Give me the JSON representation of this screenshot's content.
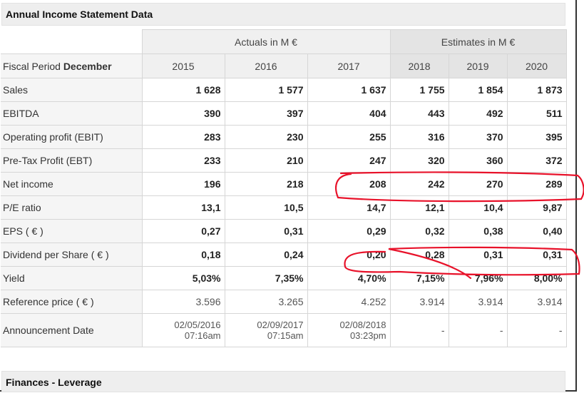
{
  "section1": {
    "title": "Annual Income Statement Data"
  },
  "section2": {
    "title": "Finances - Leverage"
  },
  "header": {
    "actuals_label": "Actuals in M €",
    "estimates_label": "Estimates in M €",
    "fiscal_period_prefix": "Fiscal Period ",
    "fiscal_period_month": "December",
    "years": [
      "2015",
      "2016",
      "2017",
      "2018",
      "2019",
      "2020"
    ]
  },
  "rows": [
    {
      "label": "Sales",
      "values": [
        "1 628",
        "1 577",
        "1 637",
        "1 755",
        "1 854",
        "1 873"
      ]
    },
    {
      "label": "EBITDA",
      "values": [
        "390",
        "397",
        "404",
        "443",
        "492",
        "511"
      ]
    },
    {
      "label": "Operating profit (EBIT)",
      "values": [
        "283",
        "230",
        "255",
        "316",
        "370",
        "395"
      ]
    },
    {
      "label": "Pre-Tax Profit (EBT)",
      "values": [
        "233",
        "210",
        "247",
        "320",
        "360",
        "372"
      ]
    },
    {
      "label": "Net income",
      "values": [
        "196",
        "218",
        "208",
        "242",
        "270",
        "289"
      ]
    },
    {
      "label": "P/E ratio",
      "values": [
        "13,1",
        "10,5",
        "14,7",
        "12,1",
        "10,4",
        "9,87"
      ]
    },
    {
      "label": "EPS ( € )",
      "values": [
        "0,27",
        "0,31",
        "0,29",
        "0,32",
        "0,38",
        "0,40"
      ]
    },
    {
      "label": "Dividend per Share ( € )",
      "values": [
        "0,18",
        "0,24",
        "0,20",
        "0,28",
        "0,31",
        "0,31"
      ]
    },
    {
      "label": "Yield",
      "values": [
        "5,03%",
        "7,35%",
        "4,70%",
        "7,15%",
        "7,96%",
        "8,00%"
      ]
    },
    {
      "label": "Reference price ( € )",
      "values": [
        "3.596",
        "3.265",
        "4.252",
        "3.914",
        "3.914",
        "3.914"
      ]
    }
  ],
  "announcement": {
    "label": "Announcement Date",
    "values": [
      {
        "date": "02/05/2016",
        "time": "07:16am"
      },
      {
        "date": "02/09/2017",
        "time": "07:15am"
      },
      {
        "date": "02/08/2018",
        "time": "03:23pm"
      },
      {
        "date": "-",
        "time": ""
      },
      {
        "date": "-",
        "time": ""
      },
      {
        "date": "-",
        "time": ""
      }
    ]
  },
  "annotation_color": "#e8122a"
}
